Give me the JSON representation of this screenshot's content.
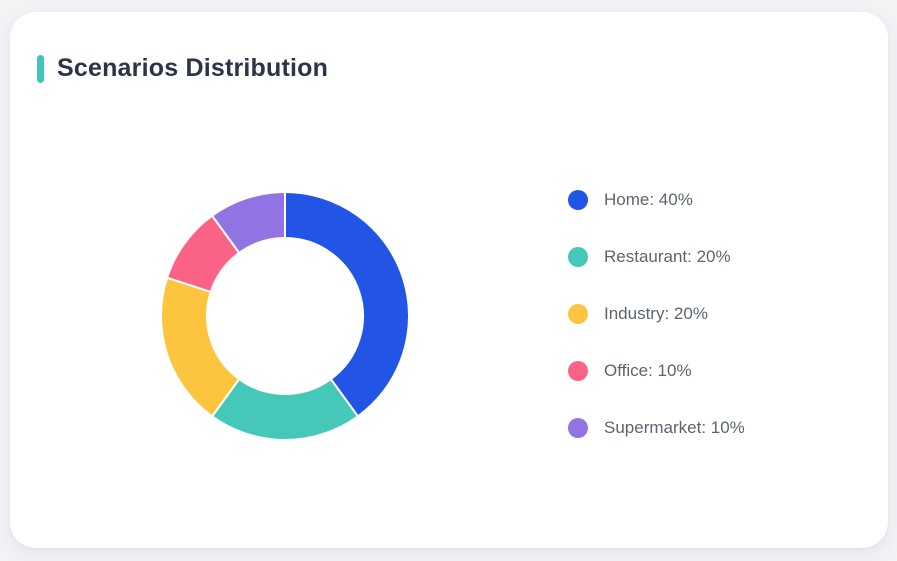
{
  "header": {
    "title": "Scenarios Distribution",
    "accent_color": "#3ec6b8"
  },
  "chart_data": {
    "type": "pie",
    "subtype": "donut",
    "title": "Scenarios Distribution",
    "categories": [
      "Home",
      "Restaurant",
      "Industry",
      "Office",
      "Supermarket"
    ],
    "values": [
      40,
      20,
      20,
      10,
      10
    ],
    "unit": "%",
    "series": [
      {
        "name": "Home",
        "value": 40,
        "color": "#2254e6",
        "label": "Home: 40%"
      },
      {
        "name": "Restaurant",
        "value": 20,
        "color": "#45c8b8",
        "label": "Restaurant: 20%"
      },
      {
        "name": "Industry",
        "value": 20,
        "color": "#fdc53f",
        "label": "Industry: 20%"
      },
      {
        "name": "Office",
        "value": 10,
        "color": "#fb6386",
        "label": "Office: 10%"
      },
      {
        "name": "Supermarket",
        "value": 10,
        "color": "#9173e3",
        "label": "Supermarket: 10%"
      }
    ],
    "legend_position": "right",
    "start_angle_deg": 0,
    "direction": "clockwise",
    "inner_radius_ratio": 0.63,
    "slice_border_color": "#ffffff"
  }
}
